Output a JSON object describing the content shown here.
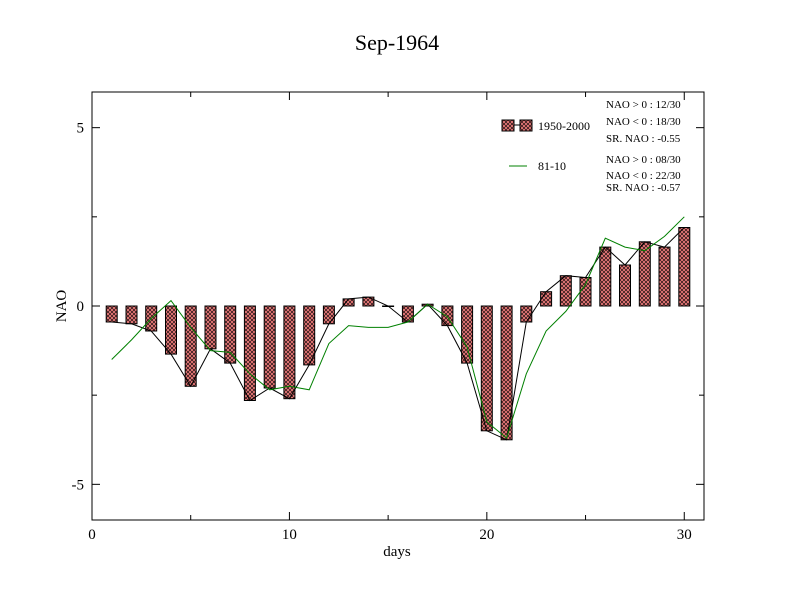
{
  "chart_data": {
    "type": "bar",
    "title": "Sep-1964",
    "xlabel": "days",
    "ylabel": "NAO",
    "xlim": [
      0,
      31
    ],
    "ylim": [
      -6,
      6
    ],
    "xticks": [
      0,
      10,
      20,
      30
    ],
    "yticks": [
      -5,
      0,
      5
    ],
    "x": [
      1,
      2,
      3,
      4,
      5,
      6,
      7,
      8,
      9,
      10,
      11,
      12,
      13,
      14,
      15,
      16,
      17,
      18,
      19,
      20,
      21,
      22,
      23,
      24,
      25,
      26,
      27,
      28,
      29,
      30
    ],
    "series": [
      {
        "name": "1950-2000",
        "kind": "bar",
        "values": [
          -0.45,
          -0.5,
          -0.7,
          -1.35,
          -2.25,
          -1.2,
          -1.6,
          -2.65,
          -2.3,
          -2.6,
          -1.65,
          -0.5,
          0.2,
          0.25,
          0.0,
          -0.45,
          0.05,
          -0.55,
          -1.6,
          -3.5,
          -3.75,
          -0.45,
          0.4,
          0.85,
          0.8,
          1.65,
          1.15,
          1.8,
          1.65,
          2.2
        ]
      },
      {
        "name": "81-10",
        "kind": "line",
        "color": "#008000",
        "values": [
          -1.5,
          -0.95,
          -0.35,
          0.15,
          -0.6,
          -1.25,
          -1.3,
          -1.9,
          -2.35,
          -2.25,
          -2.35,
          -1.05,
          -0.55,
          -0.6,
          -0.6,
          -0.45,
          0.05,
          -0.3,
          -1.15,
          -3.25,
          -3.7,
          -1.9,
          -0.7,
          -0.15,
          0.6,
          1.9,
          1.65,
          1.55,
          1.95,
          2.5
        ]
      }
    ],
    "stats_1950_2000": [
      "NAO > 0 : 12/30",
      "NAO < 0 : 18/30",
      "SR. NAO : -0.55"
    ],
    "stats_81_10": [
      "NAO > 0 : 08/30",
      "NAO < 0 : 22/30",
      "SR. NAO : -0.57"
    ],
    "colors": {
      "bar_fill": "#e87878",
      "hatch": "#000000",
      "line_8110": "#008000",
      "connector": "#000000"
    }
  }
}
